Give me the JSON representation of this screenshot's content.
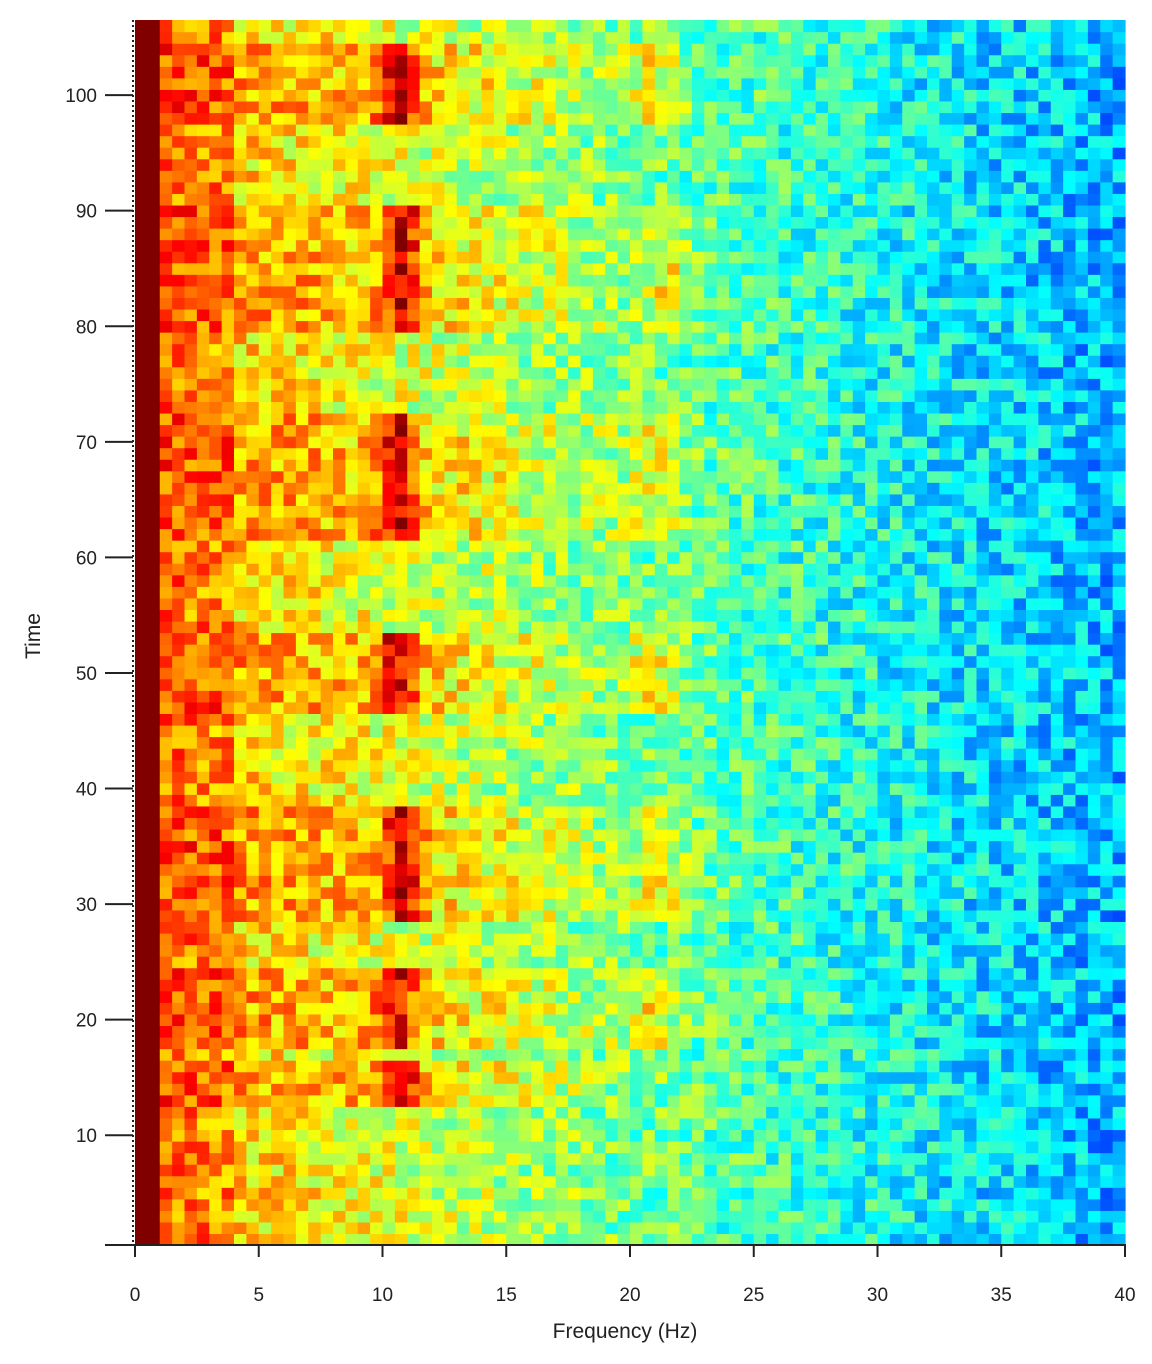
{
  "chart_data": {
    "type": "heatmap",
    "title": "",
    "xlabel": "Frequency (Hz)",
    "ylabel": "Time",
    "xlim": [
      0,
      40
    ],
    "ylim": [
      1,
      106
    ],
    "x_ticks": [
      0,
      5,
      10,
      15,
      20,
      25,
      30,
      35,
      40
    ],
    "y_ticks": [
      10,
      20,
      30,
      40,
      50,
      60,
      70,
      80,
      90,
      100
    ],
    "cell_width_hz": 0.5,
    "cell_height_time": 1,
    "colormap": "jet",
    "grid": false,
    "legend": "none",
    "description_of_values": "Normalized power (0-1) on a jet colormap; persistent maximum at 0-1 Hz; recurring high-power bands near 10-11 Hz and a weaker harmonic near 20-22 Hz during time windows listed in bursts; power decreases with frequency.",
    "bursts": [
      {
        "t_start": 13,
        "t_end": 16,
        "peak_hz": 10.8,
        "peak": 0.95
      },
      {
        "t_start": 18,
        "t_end": 24,
        "peak_hz": 10.6,
        "peak": 0.95,
        "harmonic_hz": 21.0
      },
      {
        "t_start": 29,
        "t_end": 38,
        "peak_hz": 10.8,
        "peak": 0.97,
        "harmonic_hz": 21.2
      },
      {
        "t_start": 47,
        "t_end": 53,
        "peak_hz": 10.6,
        "peak": 0.95,
        "harmonic_hz": 21.0
      },
      {
        "t_start": 62,
        "t_end": 72,
        "peak_hz": 10.6,
        "peak": 0.97,
        "harmonic_hz": 21.0
      },
      {
        "t_start": 80,
        "t_end": 90,
        "peak_hz": 10.8,
        "peak": 0.97,
        "harmonic_hz": 21.5
      },
      {
        "t_start": 98,
        "t_end": 104,
        "peak_hz": 10.6,
        "peak": 0.96,
        "harmonic_hz": 21.0
      }
    ]
  }
}
